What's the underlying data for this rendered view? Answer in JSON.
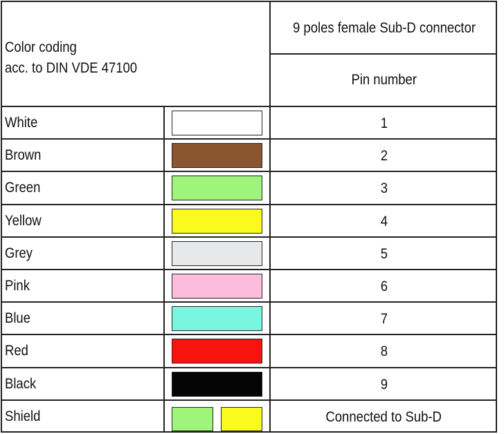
{
  "header": {
    "color_coding_title": "Color coding",
    "color_coding_subtitle": "acc. to DIN VDE 47100",
    "connector_title": "9 poles female Sub-D connector",
    "pin_number_label": "Pin number"
  },
  "rows": [
    {
      "color_name": "White",
      "swatches": [
        "#ffffff"
      ],
      "pin": "1"
    },
    {
      "color_name": "Brown",
      "swatches": [
        "#8b5530"
      ],
      "pin": "2"
    },
    {
      "color_name": "Green",
      "swatches": [
        "#9ef57a"
      ],
      "pin": "3"
    },
    {
      "color_name": "Yellow",
      "swatches": [
        "#fafa1e"
      ],
      "pin": "4"
    },
    {
      "color_name": "Grey",
      "swatches": [
        "#e6e8ea"
      ],
      "pin": "5"
    },
    {
      "color_name": "Pink",
      "swatches": [
        "#fcbcdc"
      ],
      "pin": "6"
    },
    {
      "color_name": "Blue",
      "swatches": [
        "#78f6e0"
      ],
      "pin": "7"
    },
    {
      "color_name": "Red",
      "swatches": [
        "#f8140e"
      ],
      "pin": "8"
    },
    {
      "color_name": "Black",
      "swatches": [
        "#050505"
      ],
      "pin": "9"
    },
    {
      "color_name": "Shield",
      "swatches": [
        "#9ef57a",
        "#fafa1e"
      ],
      "pin": "Connected to Sub-D"
    }
  ]
}
